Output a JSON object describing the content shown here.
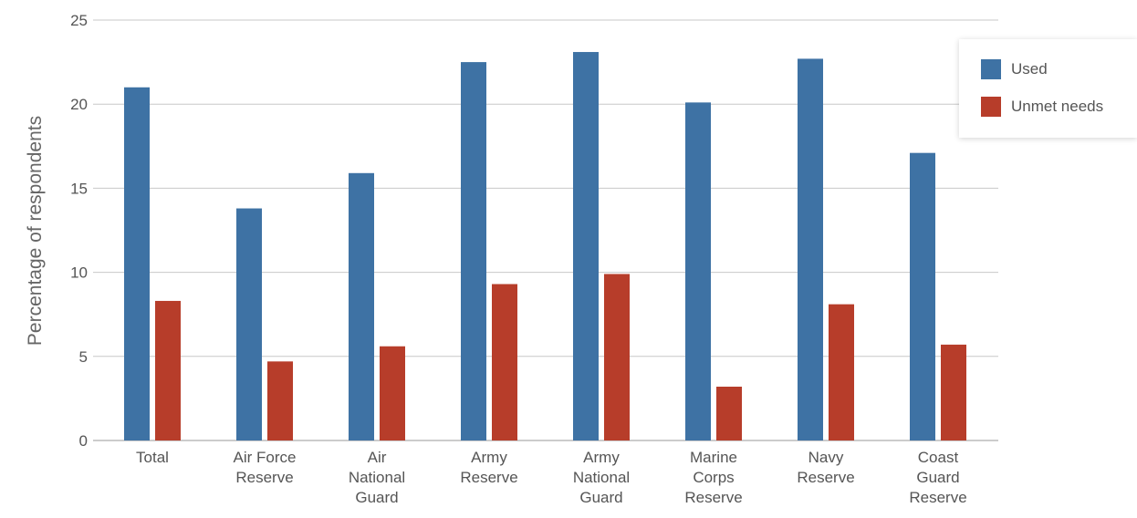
{
  "chart_data": {
    "type": "bar",
    "ylabel": "Percentage of respondents",
    "ylim": [
      0,
      25
    ],
    "yticks": [
      "0",
      "5",
      "10",
      "15",
      "20",
      "25"
    ],
    "grid": true,
    "legend_position": "top-right",
    "categories": [
      [
        "Total"
      ],
      [
        "Air Force",
        "Reserve"
      ],
      [
        "Air",
        "National",
        "Guard"
      ],
      [
        "Army",
        "Reserve"
      ],
      [
        "Army",
        "National",
        "Guard"
      ],
      [
        "Marine",
        "Corps",
        "Reserve"
      ],
      [
        "Navy",
        "Reserve"
      ],
      [
        "Coast",
        "Guard",
        "Reserve"
      ]
    ],
    "series": [
      {
        "name": "Used",
        "color": "#3e72a4",
        "values": [
          21.0,
          13.8,
          15.9,
          22.5,
          23.1,
          20.1,
          22.7,
          17.1
        ]
      },
      {
        "name": "Unmet needs",
        "color": "#b73d2a",
        "values": [
          8.3,
          4.7,
          5.6,
          9.3,
          9.9,
          3.2,
          8.1,
          5.7
        ]
      }
    ]
  }
}
